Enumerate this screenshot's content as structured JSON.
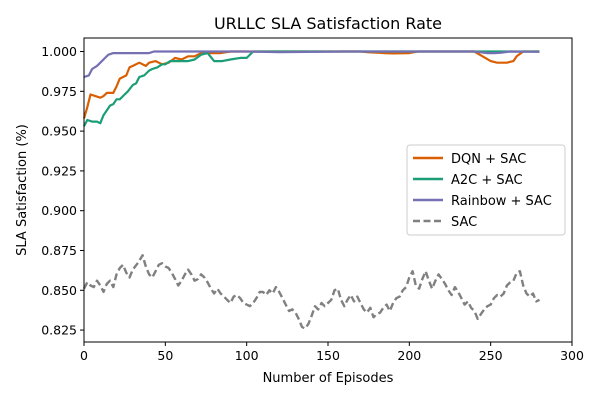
{
  "chart_data": {
    "type": "line",
    "title": "URLLC SLA Satisfaction Rate",
    "xlabel": "Number of Episodes",
    "ylabel": "SLA Satisfaction (%)",
    "xlim": [
      0,
      300
    ],
    "ylim": [
      0.8175,
      1.0085
    ],
    "xticks": [
      0,
      50,
      100,
      150,
      200,
      250,
      300
    ],
    "yticks": [
      0.825,
      0.85,
      0.875,
      0.9,
      0.925,
      0.95,
      0.975,
      1.0
    ],
    "ytick_labels": [
      "0.825",
      "0.850",
      "0.875",
      "0.900",
      "0.925",
      "0.950",
      "0.975",
      "1.000"
    ],
    "grid": false,
    "legend_position": "center-right",
    "series": [
      {
        "name": "DQN + SAC",
        "color": "#d95f02",
        "dash": "solid",
        "points": [
          [
            0,
            0.958
          ],
          [
            2,
            0.965
          ],
          [
            4,
            0.973
          ],
          [
            7,
            0.972
          ],
          [
            10,
            0.971
          ],
          [
            12,
            0.972
          ],
          [
            14,
            0.974
          ],
          [
            18,
            0.974
          ],
          [
            20,
            0.978
          ],
          [
            22,
            0.983
          ],
          [
            26,
            0.985
          ],
          [
            28,
            0.99
          ],
          [
            30,
            0.991
          ],
          [
            34,
            0.993
          ],
          [
            38,
            0.991
          ],
          [
            40,
            0.993
          ],
          [
            44,
            0.994
          ],
          [
            48,
            0.992
          ],
          [
            52,
            0.993
          ],
          [
            56,
            0.996
          ],
          [
            60,
            0.995
          ],
          [
            64,
            0.997
          ],
          [
            68,
            0.997
          ],
          [
            72,
            0.999
          ],
          [
            78,
            0.999
          ],
          [
            84,
            0.999
          ],
          [
            90,
            1.0
          ],
          [
            100,
            1.0
          ],
          [
            150,
            1.0
          ],
          [
            170,
            1.0
          ],
          [
            175,
            0.9995
          ],
          [
            180,
            0.9993
          ],
          [
            185,
            0.999
          ],
          [
            190,
            0.9988
          ],
          [
            200,
            0.999
          ],
          [
            205,
            1.0
          ],
          [
            240,
            1.0
          ],
          [
            245,
            0.997
          ],
          [
            250,
            0.994
          ],
          [
            254,
            0.993
          ],
          [
            260,
            0.993
          ],
          [
            264,
            0.994
          ],
          [
            266,
            0.997
          ],
          [
            270,
            1.0
          ],
          [
            280,
            1.0
          ]
        ]
      },
      {
        "name": "A2C + SAC",
        "color": "#1b9e77",
        "dash": "solid",
        "points": [
          [
            0,
            0.953
          ],
          [
            2,
            0.957
          ],
          [
            5,
            0.956
          ],
          [
            8,
            0.956
          ],
          [
            10,
            0.955
          ],
          [
            12,
            0.96
          ],
          [
            14,
            0.963
          ],
          [
            16,
            0.966
          ],
          [
            18,
            0.967
          ],
          [
            20,
            0.97
          ],
          [
            22,
            0.97
          ],
          [
            24,
            0.972
          ],
          [
            27,
            0.975
          ],
          [
            30,
            0.979
          ],
          [
            32,
            0.98
          ],
          [
            34,
            0.984
          ],
          [
            37,
            0.985
          ],
          [
            40,
            0.988
          ],
          [
            42,
            0.989
          ],
          [
            45,
            0.99
          ],
          [
            48,
            0.992
          ],
          [
            50,
            0.992
          ],
          [
            53,
            0.994
          ],
          [
            56,
            0.994
          ],
          [
            60,
            0.994
          ],
          [
            64,
            0.994
          ],
          [
            68,
            0.995
          ],
          [
            72,
            0.998
          ],
          [
            76,
            0.999
          ],
          [
            80,
            0.994
          ],
          [
            85,
            0.994
          ],
          [
            90,
            0.995
          ],
          [
            96,
            0.996
          ],
          [
            100,
            0.996
          ],
          [
            104,
            1.0
          ],
          [
            280,
            1.0
          ]
        ]
      },
      {
        "name": "Rainbow + SAC",
        "color": "#7570b3",
        "dash": "solid",
        "points": [
          [
            0,
            0.984
          ],
          [
            3,
            0.985
          ],
          [
            5,
            0.989
          ],
          [
            8,
            0.991
          ],
          [
            10,
            0.993
          ],
          [
            13,
            0.996
          ],
          [
            15,
            0.998
          ],
          [
            18,
            0.999
          ],
          [
            22,
            0.999
          ],
          [
            26,
            0.999
          ],
          [
            30,
            0.999
          ],
          [
            36,
            0.999
          ],
          [
            40,
            0.999
          ],
          [
            43,
            1.0
          ],
          [
            100,
            1.0
          ],
          [
            120,
            0.9996
          ],
          [
            160,
            1.0
          ],
          [
            240,
            1.0
          ],
          [
            244,
            0.9995
          ],
          [
            248,
            0.999
          ],
          [
            252,
            0.999
          ],
          [
            256,
            0.9992
          ],
          [
            262,
            1.0
          ],
          [
            280,
            0.9998
          ]
        ]
      },
      {
        "name": "SAC",
        "color": "#808080",
        "dash": "dashed",
        "points": [
          [
            0,
            0.851
          ],
          [
            2,
            0.855
          ],
          [
            4,
            0.853
          ],
          [
            6,
            0.852
          ],
          [
            8,
            0.856
          ],
          [
            10,
            0.853
          ],
          [
            12,
            0.849
          ],
          [
            14,
            0.854
          ],
          [
            16,
            0.856
          ],
          [
            18,
            0.852
          ],
          [
            20,
            0.86
          ],
          [
            22,
            0.864
          ],
          [
            24,
            0.866
          ],
          [
            26,
            0.861
          ],
          [
            28,
            0.858
          ],
          [
            30,
            0.863
          ],
          [
            33,
            0.867
          ],
          [
            36,
            0.872
          ],
          [
            38,
            0.865
          ],
          [
            40,
            0.86
          ],
          [
            42,
            0.858
          ],
          [
            44,
            0.862
          ],
          [
            46,
            0.866
          ],
          [
            48,
            0.867
          ],
          [
            50,
            0.865
          ],
          [
            52,
            0.864
          ],
          [
            54,
            0.861
          ],
          [
            56,
            0.857
          ],
          [
            58,
            0.853
          ],
          [
            60,
            0.856
          ],
          [
            62,
            0.86
          ],
          [
            64,
            0.863
          ],
          [
            66,
            0.86
          ],
          [
            68,
            0.856
          ],
          [
            70,
            0.857
          ],
          [
            72,
            0.86
          ],
          [
            74,
            0.858
          ],
          [
            76,
            0.855
          ],
          [
            78,
            0.851
          ],
          [
            80,
            0.848
          ],
          [
            82,
            0.851
          ],
          [
            84,
            0.848
          ],
          [
            86,
            0.846
          ],
          [
            88,
            0.844
          ],
          [
            90,
            0.842
          ],
          [
            92,
            0.846
          ],
          [
            94,
            0.847
          ],
          [
            96,
            0.845
          ],
          [
            98,
            0.842
          ],
          [
            100,
            0.841
          ],
          [
            102,
            0.84
          ],
          [
            104,
            0.842
          ],
          [
            106,
            0.845
          ],
          [
            108,
            0.849
          ],
          [
            110,
            0.849
          ],
          [
            112,
            0.847
          ],
          [
            114,
            0.85
          ],
          [
            116,
            0.848
          ],
          [
            118,
            0.852
          ],
          [
            120,
            0.849
          ],
          [
            122,
            0.845
          ],
          [
            124,
            0.841
          ],
          [
            126,
            0.837
          ],
          [
            128,
            0.838
          ],
          [
            130,
            0.836
          ],
          [
            132,
            0.832
          ],
          [
            134,
            0.827
          ],
          [
            136,
            0.826
          ],
          [
            138,
            0.829
          ],
          [
            140,
            0.834
          ],
          [
            142,
            0.84
          ],
          [
            144,
            0.838
          ],
          [
            146,
            0.842
          ],
          [
            148,
            0.84
          ],
          [
            150,
            0.842
          ],
          [
            152,
            0.844
          ],
          [
            154,
            0.85
          ],
          [
            156,
            0.851
          ],
          [
            158,
            0.844
          ],
          [
            160,
            0.84
          ],
          [
            162,
            0.844
          ],
          [
            164,
            0.847
          ],
          [
            166,
            0.843
          ],
          [
            168,
            0.846
          ],
          [
            170,
            0.842
          ],
          [
            172,
            0.838
          ],
          [
            174,
            0.836
          ],
          [
            176,
            0.839
          ],
          [
            178,
            0.833
          ],
          [
            180,
            0.835
          ],
          [
            182,
            0.836
          ],
          [
            184,
            0.839
          ],
          [
            186,
            0.841
          ],
          [
            188,
            0.837
          ],
          [
            190,
            0.842
          ],
          [
            192,
            0.845
          ],
          [
            194,
            0.846
          ],
          [
            196,
            0.85
          ],
          [
            198,
            0.852
          ],
          [
            200,
            0.858
          ],
          [
            202,
            0.862
          ],
          [
            204,
            0.853
          ],
          [
            206,
            0.851
          ],
          [
            208,
            0.857
          ],
          [
            210,
            0.862
          ],
          [
            212,
            0.856
          ],
          [
            214,
            0.851
          ],
          [
            216,
            0.856
          ],
          [
            218,
            0.86
          ],
          [
            220,
            0.857
          ],
          [
            222,
            0.854
          ],
          [
            224,
            0.85
          ],
          [
            226,
            0.847
          ],
          [
            228,
            0.852
          ],
          [
            230,
            0.849
          ],
          [
            232,
            0.845
          ],
          [
            234,
            0.841
          ],
          [
            236,
            0.843
          ],
          [
            238,
            0.839
          ],
          [
            240,
            0.837
          ],
          [
            242,
            0.832
          ],
          [
            244,
            0.835
          ],
          [
            246,
            0.838
          ],
          [
            248,
            0.84
          ],
          [
            250,
            0.841
          ],
          [
            252,
            0.845
          ],
          [
            254,
            0.847
          ],
          [
            256,
            0.846
          ],
          [
            258,
            0.848
          ],
          [
            260,
            0.853
          ],
          [
            262,
            0.855
          ],
          [
            264,
            0.856
          ],
          [
            266,
            0.861
          ],
          [
            268,
            0.862
          ],
          [
            270,
            0.853
          ],
          [
            272,
            0.848
          ],
          [
            274,
            0.846
          ],
          [
            276,
            0.848
          ],
          [
            278,
            0.843
          ],
          [
            280,
            0.844
          ]
        ]
      }
    ]
  }
}
